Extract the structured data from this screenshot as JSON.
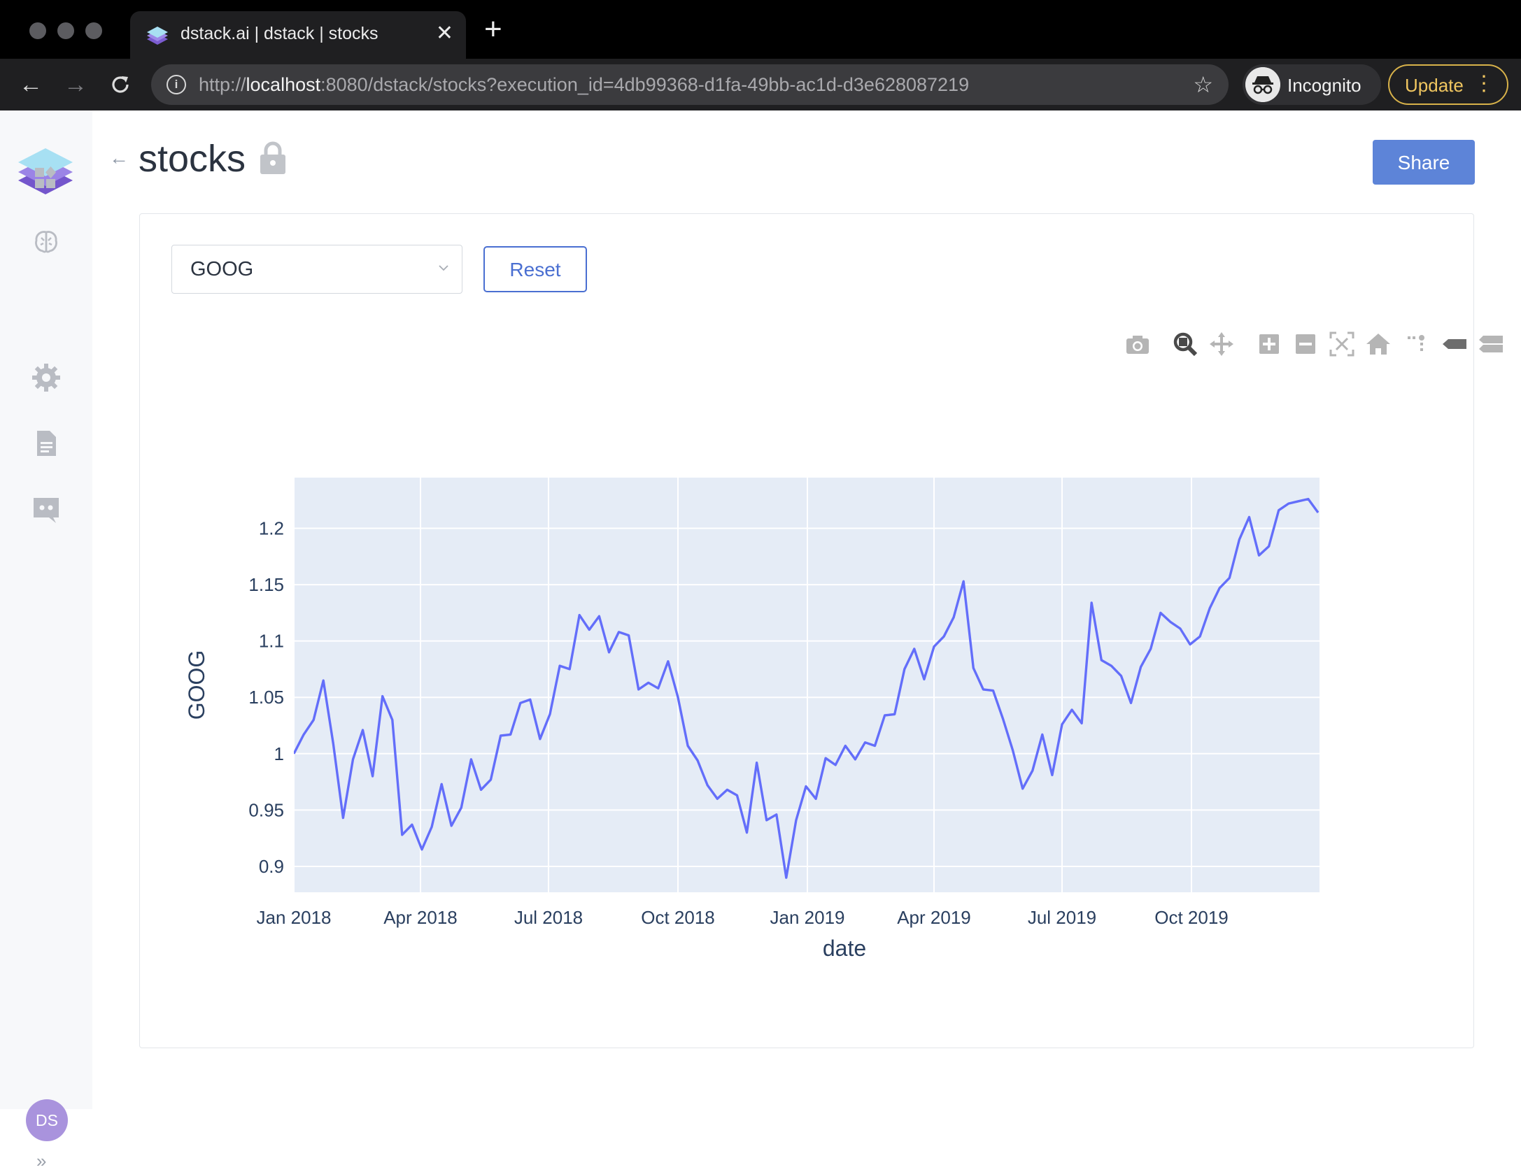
{
  "browser": {
    "tab_title": "dstack.ai | dstack | stocks",
    "url_prefix": "http://",
    "url_host": "localhost",
    "url_rest": ":8080/dstack/stocks?execution_id=4db99368-d1fa-49bb-ac1d-d3e628087219",
    "incognito_label": "Incognito",
    "update_label": "Update"
  },
  "sidebar": {
    "icons": [
      "dashboard-icon",
      "brain-icon",
      "settings-icon",
      "document-icon",
      "discord-icon"
    ],
    "avatar_initials": "DS",
    "expand_label": "»"
  },
  "page": {
    "title": "stocks",
    "share_label": "Share",
    "select_value": "GOOG",
    "reset_label": "Reset"
  },
  "modebar": [
    "camera-icon",
    "zoom-icon",
    "pan-icon",
    "zoom-in-icon",
    "zoom-out-icon",
    "autoscale-icon",
    "reset-axes-icon",
    "spike-lines-icon",
    "hover-closest-icon",
    "hover-compare-icon",
    "plotly-logo-icon"
  ],
  "colors": {
    "accent": "#5d84d8",
    "line": "#636efa",
    "plot_bg": "#e5ecf6",
    "avatar": "#a993dd"
  },
  "chart_data": {
    "type": "line",
    "ylabel": "GOOG",
    "xlabel": "date",
    "xlim": [
      "2018-01-01",
      "2019-12-31"
    ],
    "ylim": [
      0.877,
      1.245
    ],
    "grid": true,
    "x_ticks": [
      "Jan 2018",
      "Apr 2018",
      "Jul 2018",
      "Oct 2018",
      "Jan 2019",
      "Apr 2019",
      "Jul 2019",
      "Oct 2019"
    ],
    "y_ticks": [
      "0.9",
      "0.95",
      "1",
      "1.05",
      "1.1",
      "1.15",
      "1.2"
    ],
    "series": [
      {
        "x": [
          "2018-01-01",
          "2018-01-08",
          "2018-01-15",
          "2018-01-22",
          "2018-01-29",
          "2018-02-05",
          "2018-02-12",
          "2018-02-19",
          "2018-02-26",
          "2018-03-05",
          "2018-03-12",
          "2018-03-19",
          "2018-03-26",
          "2018-04-02",
          "2018-04-09",
          "2018-04-16",
          "2018-04-23",
          "2018-04-30",
          "2018-05-07",
          "2018-05-14",
          "2018-05-21",
          "2018-05-28",
          "2018-06-04",
          "2018-06-11",
          "2018-06-18",
          "2018-06-25",
          "2018-07-02",
          "2018-07-09",
          "2018-07-16",
          "2018-07-23",
          "2018-07-30",
          "2018-08-06",
          "2018-08-13",
          "2018-08-20",
          "2018-08-27",
          "2018-09-03",
          "2018-09-10",
          "2018-09-17",
          "2018-09-24",
          "2018-10-01",
          "2018-10-08",
          "2018-10-15",
          "2018-10-22",
          "2018-10-29",
          "2018-11-05",
          "2018-11-12",
          "2018-11-19",
          "2018-11-26",
          "2018-12-03",
          "2018-12-10",
          "2018-12-17",
          "2018-12-24",
          "2018-12-31",
          "2019-01-07",
          "2019-01-14",
          "2019-01-21",
          "2019-01-28",
          "2019-02-04",
          "2019-02-11",
          "2019-02-18",
          "2019-02-25",
          "2019-03-04",
          "2019-03-11",
          "2019-03-18",
          "2019-03-25",
          "2019-04-01",
          "2019-04-08",
          "2019-04-15",
          "2019-04-22",
          "2019-04-29",
          "2019-05-06",
          "2019-05-13",
          "2019-05-20",
          "2019-05-27",
          "2019-06-03",
          "2019-06-10",
          "2019-06-17",
          "2019-06-24",
          "2019-07-01",
          "2019-07-08",
          "2019-07-15",
          "2019-07-22",
          "2019-07-29",
          "2019-08-05",
          "2019-08-12",
          "2019-08-19",
          "2019-08-26",
          "2019-09-02",
          "2019-09-09",
          "2019-09-16",
          "2019-09-23",
          "2019-09-30",
          "2019-10-07",
          "2019-10-14",
          "2019-10-21",
          "2019-10-28",
          "2019-11-04",
          "2019-11-11",
          "2019-11-18",
          "2019-11-25",
          "2019-12-02",
          "2019-12-09",
          "2019-12-16",
          "2019-12-23",
          "2019-12-30"
        ],
        "y": [
          1.0,
          1.017,
          1.03,
          1.065,
          1.009,
          0.943,
          0.995,
          1.021,
          0.98,
          1.051,
          1.03,
          0.928,
          0.937,
          0.915,
          0.935,
          0.973,
          0.936,
          0.952,
          0.995,
          0.968,
          0.977,
          1.016,
          1.017,
          1.045,
          1.048,
          1.013,
          1.035,
          1.078,
          1.075,
          1.123,
          1.11,
          1.122,
          1.09,
          1.108,
          1.105,
          1.057,
          1.063,
          1.058,
          1.082,
          1.05,
          1.007,
          0.994,
          0.972,
          0.96,
          0.968,
          0.963,
          0.93,
          0.992,
          0.941,
          0.946,
          0.89,
          0.941,
          0.971,
          0.96,
          0.996,
          0.99,
          1.007,
          0.995,
          1.01,
          1.007,
          1.034,
          1.035,
          1.075,
          1.093,
          1.066,
          1.095,
          1.104,
          1.121,
          1.153,
          1.076,
          1.057,
          1.056,
          1.031,
          1.003,
          0.969,
          0.985,
          1.017,
          0.981,
          1.026,
          1.039,
          1.027,
          1.134,
          1.083,
          1.078,
          1.069,
          1.045,
          1.077,
          1.093,
          1.125,
          1.117,
          1.111,
          1.097,
          1.104,
          1.129,
          1.147,
          1.156,
          1.19,
          1.21,
          1.176,
          1.184,
          1.216,
          1.222,
          1.224,
          1.226,
          1.214
        ]
      }
    ]
  }
}
